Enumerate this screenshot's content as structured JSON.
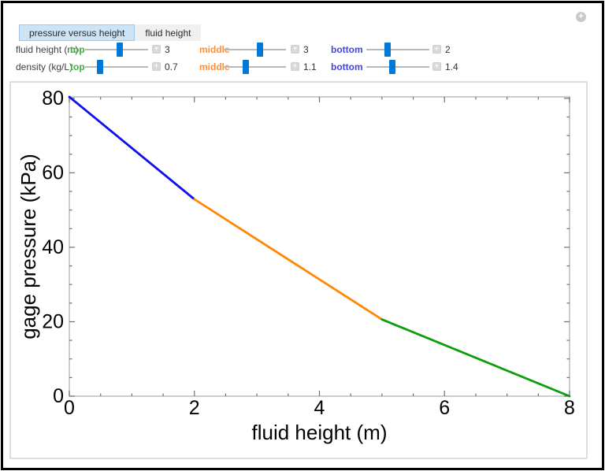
{
  "icons": {
    "plus": "+"
  },
  "tabs": [
    {
      "label": "pressure versus height",
      "selected": true
    },
    {
      "label": "fluid height",
      "selected": false
    }
  ],
  "controls": {
    "rows": [
      {
        "label": "fluid height (m)",
        "sliders": [
          {
            "name": "top",
            "color": "#3fad42",
            "value": "3",
            "percent": 55
          },
          {
            "name": "middle",
            "color": "#ff8e3a",
            "value": "3",
            "percent": 59
          },
          {
            "name": "bottom",
            "color": "#4545dd",
            "value": "2",
            "percent": 34
          }
        ]
      },
      {
        "label": "density (kg/L)",
        "sliders": [
          {
            "name": "top",
            "color": "#3fad42",
            "value": "0.7",
            "percent": 24
          },
          {
            "name": "middle",
            "color": "#ff8e3a",
            "value": "1.1",
            "percent": 36
          },
          {
            "name": "bottom",
            "color": "#4545dd",
            "value": "1.4",
            "percent": 41
          }
        ]
      }
    ]
  },
  "chart_data": {
    "type": "line",
    "title": "",
    "xlabel": "fluid height (m)",
    "ylabel": "gage pressure (kPa)",
    "xlim": [
      0,
      8
    ],
    "ylim": [
      0,
      80.4
    ],
    "xticks": [
      0,
      2,
      4,
      6,
      8
    ],
    "x_minor_step": 0.5,
    "yticks": [
      0,
      20,
      40,
      60,
      80
    ],
    "y_minor_step": 5,
    "grid": false,
    "frame": true,
    "legend": "none",
    "series": [
      {
        "name": "bottom fluid",
        "color": "#0f0fef",
        "points": [
          [
            0,
            80.4
          ],
          [
            2,
            52.9
          ]
        ]
      },
      {
        "name": "middle fluid",
        "color": "#ff8800",
        "points": [
          [
            2,
            52.9
          ],
          [
            5,
            20.6
          ]
        ]
      },
      {
        "name": "top fluid",
        "color": "#0a9e0a",
        "points": [
          [
            5,
            20.6
          ],
          [
            8,
            0
          ]
        ]
      }
    ],
    "colors": {
      "frame": "#b0b0b0",
      "ticks": "#707070",
      "labels": "#000000"
    }
  }
}
